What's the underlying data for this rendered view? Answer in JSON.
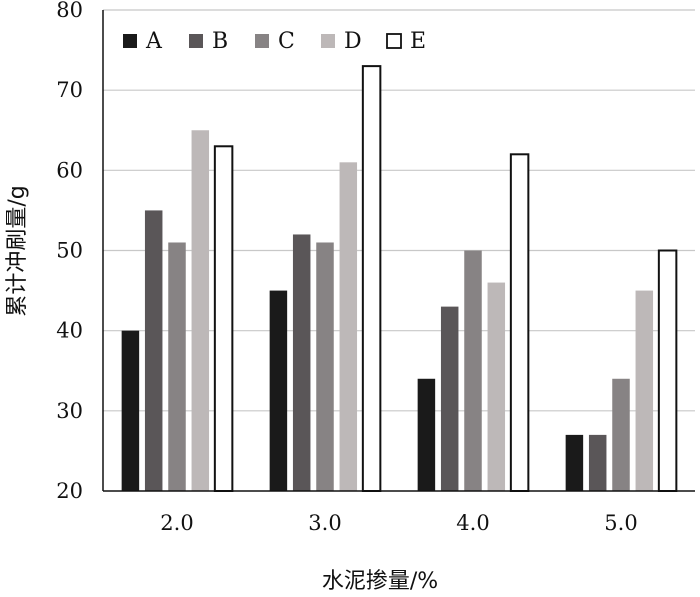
{
  "chart_data": {
    "type": "bar",
    "xlabel": "水泥掺量/%",
    "ylabel": "累计冲刷量/g",
    "categories": [
      "2.0",
      "3.0",
      "4.0",
      "5.0"
    ],
    "ylim": [
      20,
      80
    ],
    "yticks": [
      "20",
      "30",
      "40",
      "50",
      "60",
      "70",
      "80"
    ],
    "grid": true,
    "legend_position": "top-left",
    "series": [
      {
        "name": "A",
        "color": "#1a1a1a",
        "values": [
          40,
          45,
          34,
          27
        ]
      },
      {
        "name": "B",
        "color": "#5a5658",
        "values": [
          55,
          52,
          43,
          27
        ]
      },
      {
        "name": "C",
        "color": "#878384",
        "values": [
          51,
          51,
          50,
          34
        ]
      },
      {
        "name": "D",
        "color": "#bdb8b8",
        "values": [
          65,
          61,
          46,
          45
        ]
      },
      {
        "name": "E",
        "color": "#ffffff",
        "outline": true,
        "values": [
          63,
          73,
          62,
          50
        ]
      }
    ]
  }
}
